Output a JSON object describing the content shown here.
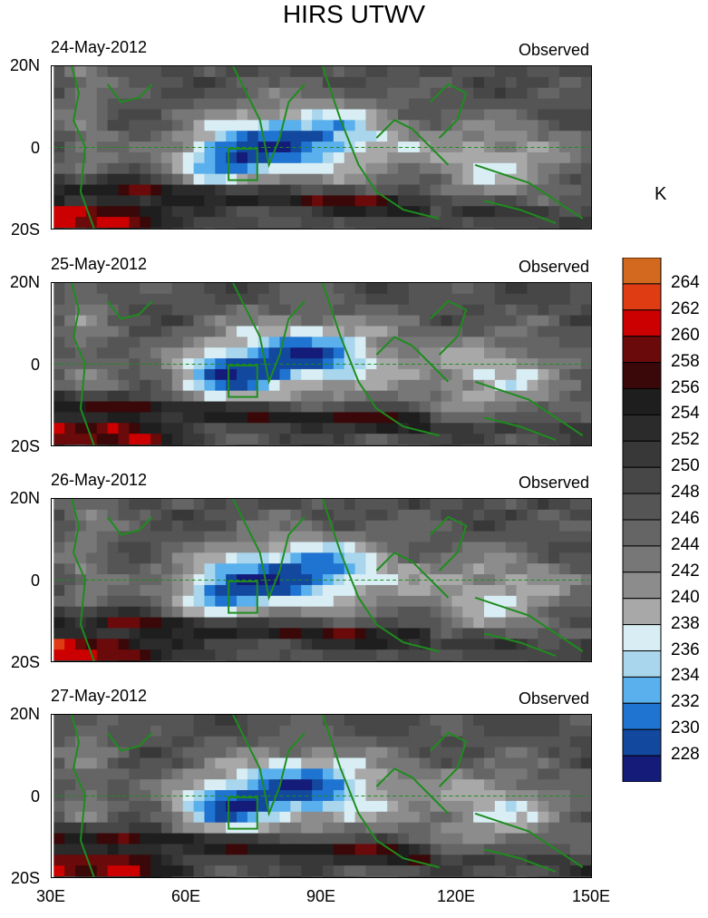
{
  "figure": {
    "title": "HIRS UTWV",
    "units": "K",
    "panel_tag": "Observed",
    "lat_labels": [
      "20N",
      "0",
      "20S"
    ],
    "lon_labels": [
      "30E",
      "60E",
      "90E",
      "120E",
      "150E"
    ]
  },
  "panels": [
    {
      "date": "24-May-2012",
      "tag": "Observed"
    },
    {
      "date": "25-May-2012",
      "tag": "Observed"
    },
    {
      "date": "26-May-2012",
      "tag": "Observed"
    },
    {
      "date": "27-May-2012",
      "tag": "Observed"
    }
  ],
  "colorbar": {
    "levels": [
      "264",
      "262",
      "260",
      "258",
      "256",
      "254",
      "252",
      "250",
      "248",
      "246",
      "244",
      "242",
      "240",
      "238",
      "236",
      "234",
      "232",
      "230",
      "228"
    ],
    "colors": [
      "#d2691e",
      "#e03c14",
      "#cc0000",
      "#6b0a0a",
      "#3a0808",
      "#1e1e1e",
      "#2b2b2b",
      "#383838",
      "#474747",
      "#555555",
      "#656565",
      "#777777",
      "#8c8c8c",
      "#a8a8a8",
      "#d9eef4",
      "#a9d6ec",
      "#5ab0ec",
      "#1f74d1",
      "#12489e",
      "#141b78"
    ]
  },
  "colors": {
    "coast": "#1e8c1e",
    "box": "#1e8c1e"
  }
}
